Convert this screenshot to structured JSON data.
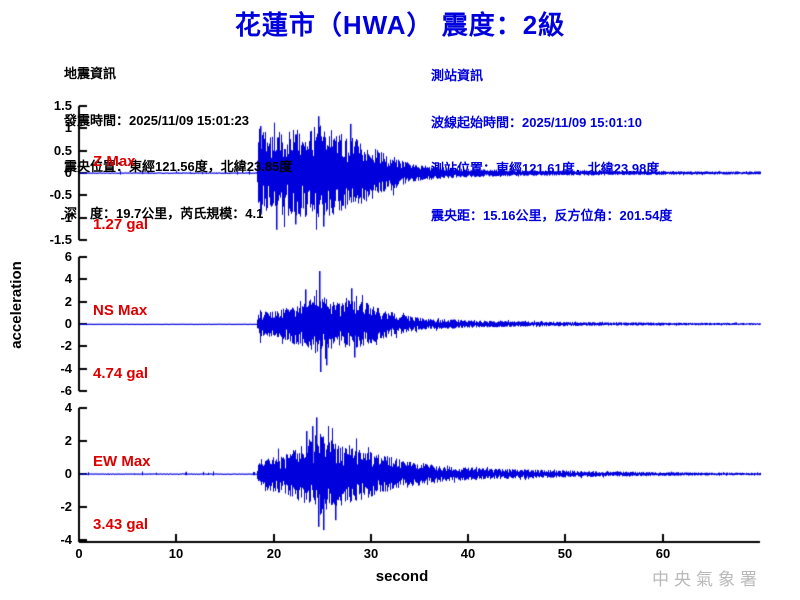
{
  "title": "花蓮市（HWA） 震度：2級",
  "watermark": "中央氣象署",
  "info_left": {
    "heading": "地震資訊",
    "lines": [
      "發震時間：2025/11/09 15:01:23",
      "震央位置：東經121.56度，北緯23.85度",
      "深　度：19.7公里，芮氏規模：4.1"
    ]
  },
  "info_right": {
    "heading": "測站資訊",
    "lines": [
      "波線起始時間：2025/11/09 15:01:10",
      "測站位置：東經121.61度，北緯23.98度",
      "震央距：15.16公里，反方位角：201.54度"
    ]
  },
  "chart_data": {
    "type": "line",
    "title": "花蓮市（HWA） 震度：2級",
    "xlabel": "second",
    "ylabel": "acceleration",
    "x_range": [
      0,
      70
    ],
    "x_ticks": [
      0,
      10,
      20,
      30,
      40,
      50,
      60
    ],
    "grid": false,
    "line_color": "#0000dd",
    "axis_color": "#000000",
    "annotation_color": "#dd0000",
    "panels": [
      {
        "name": "Z",
        "max_label": "Z Max",
        "max_value": "1.27 gal",
        "max_gal": 1.27,
        "ylim": [
          -1.5,
          1.5
        ],
        "yticks": [
          1.5,
          1,
          0.5,
          0,
          -0.5,
          -1,
          -1.5
        ],
        "onset_s": 18.35,
        "envelope": [
          [
            0,
            0.015
          ],
          [
            18.2,
            0.015
          ],
          [
            18.5,
            1.05
          ],
          [
            19.5,
            0.85
          ],
          [
            21,
            0.95
          ],
          [
            23,
            1.0
          ],
          [
            24.5,
            1.1
          ],
          [
            26,
            0.95
          ],
          [
            28,
            0.82
          ],
          [
            30,
            0.6
          ],
          [
            31.5,
            0.45
          ],
          [
            33,
            0.3
          ],
          [
            35,
            0.18
          ],
          [
            38,
            0.12
          ],
          [
            42,
            0.08
          ],
          [
            48,
            0.06
          ],
          [
            55,
            0.05
          ],
          [
            62,
            0.04
          ],
          [
            70,
            0.035
          ]
        ],
        "spikes": [
          [
            18.6,
            1.05
          ],
          [
            20.3,
            -1.27
          ],
          [
            22.2,
            -1.15
          ],
          [
            24.6,
            1.27
          ],
          [
            25.1,
            -1.2
          ],
          [
            27.9,
            1.1
          ]
        ]
      },
      {
        "name": "NS",
        "max_label": "NS Max",
        "max_value": "4.74 gal",
        "max_gal": 4.74,
        "ylim": [
          -6,
          6
        ],
        "yticks": [
          6,
          4,
          2,
          0,
          -2,
          -4,
          -6
        ],
        "onset_s": 18.35,
        "envelope": [
          [
            0,
            0.03
          ],
          [
            18.2,
            0.03
          ],
          [
            18.5,
            1.3
          ],
          [
            20,
            1.1
          ],
          [
            21.5,
            1.6
          ],
          [
            23,
            2.2
          ],
          [
            24,
            2.6
          ],
          [
            25,
            2.8
          ],
          [
            25.5,
            2.4
          ],
          [
            26.5,
            2.0
          ],
          [
            27.5,
            2.4
          ],
          [
            28.5,
            2.2
          ],
          [
            30,
            1.8
          ],
          [
            31,
            1.4
          ],
          [
            32.5,
            1.0
          ],
          [
            34,
            0.7
          ],
          [
            36,
            0.5
          ],
          [
            40,
            0.35
          ],
          [
            45,
            0.25
          ],
          [
            50,
            0.2
          ],
          [
            55,
            0.15
          ],
          [
            62,
            0.12
          ],
          [
            70,
            0.1
          ]
        ],
        "spikes": [
          [
            23.2,
            3.1
          ],
          [
            24.65,
            4.74
          ],
          [
            24.8,
            -4.3
          ],
          [
            25.4,
            -3.7
          ],
          [
            28.0,
            3.2
          ],
          [
            28.3,
            -3.0
          ]
        ]
      },
      {
        "name": "EW",
        "max_label": "EW Max",
        "max_value": "3.43 gal",
        "max_gal": 3.43,
        "ylim": [
          -4,
          4
        ],
        "yticks": [
          4,
          2,
          0,
          -2,
          -4
        ],
        "onset_s": 18.35,
        "envelope": [
          [
            0,
            0.04
          ],
          [
            18.2,
            0.04
          ],
          [
            18.5,
            1.0
          ],
          [
            20,
            1.1
          ],
          [
            21.5,
            1.3
          ],
          [
            23,
            1.9
          ],
          [
            24,
            2.3
          ],
          [
            24.8,
            2.5
          ],
          [
            25.5,
            2.2
          ],
          [
            27,
            1.9
          ],
          [
            28,
            1.7
          ],
          [
            29.5,
            1.5
          ],
          [
            31,
            1.2
          ],
          [
            33,
            0.9
          ],
          [
            35,
            0.7
          ],
          [
            38,
            0.45
          ],
          [
            42,
            0.35
          ],
          [
            48,
            0.25
          ],
          [
            55,
            0.15
          ],
          [
            65,
            0.09
          ],
          [
            70,
            0.08
          ]
        ],
        "spikes": [
          [
            23.3,
            2.6
          ],
          [
            24.0,
            2.9
          ],
          [
            24.35,
            3.43
          ],
          [
            24.6,
            -3.2
          ],
          [
            25.1,
            -3.4
          ],
          [
            26.3,
            -2.8
          ]
        ]
      }
    ]
  }
}
